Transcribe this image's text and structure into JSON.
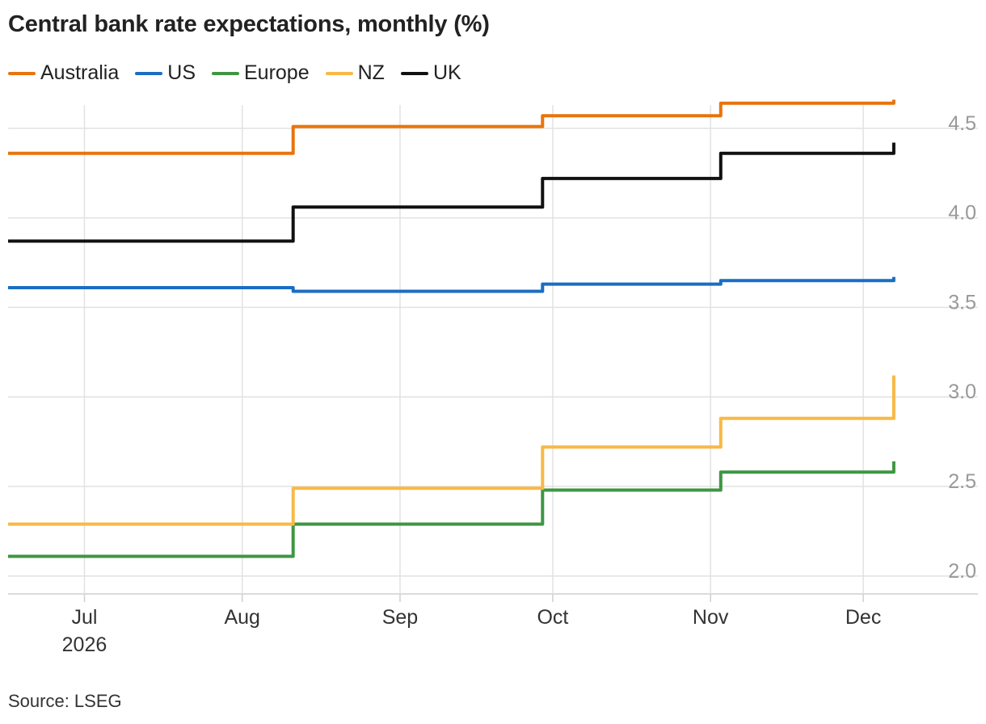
{
  "chart_data": {
    "type": "line",
    "title": "Central bank rate expectations, monthly (%)",
    "source": "Source: LSEG",
    "x_axis": {
      "range": [
        "2026-06-16",
        "2026-12-14"
      ],
      "ticks": [
        {
          "date": "2026-07-01",
          "label": "Jul",
          "sublabel": "2026"
        },
        {
          "date": "2026-08-01",
          "label": "Aug",
          "sublabel": ""
        },
        {
          "date": "2026-09-01",
          "label": "Sep",
          "sublabel": ""
        },
        {
          "date": "2026-10-01",
          "label": "Oct",
          "sublabel": ""
        },
        {
          "date": "2026-11-01",
          "label": "Nov",
          "sublabel": ""
        },
        {
          "date": "2026-12-01",
          "label": "Dec",
          "sublabel": ""
        }
      ]
    },
    "y_axis": {
      "range": [
        1.9,
        4.63
      ],
      "ticks": [
        {
          "value": 2.0,
          "label": "2.0"
        },
        {
          "value": 2.5,
          "label": "2.5"
        },
        {
          "value": 3.0,
          "label": "3.0"
        },
        {
          "value": 3.5,
          "label": "3.5"
        },
        {
          "value": 4.0,
          "label": "4.0"
        },
        {
          "value": 4.5,
          "label": "4.5"
        }
      ],
      "position": "right"
    },
    "grid": true,
    "legend_placement": "top-left",
    "step": true,
    "series": [
      {
        "name": "Australia",
        "color": "#e8740c",
        "points": [
          [
            "2026-06-16",
            4.36
          ],
          [
            "2026-08-11",
            4.36
          ],
          [
            "2026-08-11",
            4.51
          ],
          [
            "2026-09-29",
            4.51
          ],
          [
            "2026-09-29",
            4.57
          ],
          [
            "2026-11-03",
            4.57
          ],
          [
            "2026-11-03",
            4.64
          ],
          [
            "2026-12-07",
            4.64
          ],
          [
            "2026-12-07",
            4.66
          ]
        ]
      },
      {
        "name": "US",
        "color": "#1a6ec2",
        "points": [
          [
            "2026-06-16",
            3.61
          ],
          [
            "2026-08-11",
            3.61
          ],
          [
            "2026-08-11",
            3.59
          ],
          [
            "2026-09-29",
            3.59
          ],
          [
            "2026-09-29",
            3.63
          ],
          [
            "2026-11-03",
            3.63
          ],
          [
            "2026-11-03",
            3.65
          ],
          [
            "2026-12-07",
            3.65
          ],
          [
            "2026-12-07",
            3.67
          ]
        ]
      },
      {
        "name": "Europe",
        "color": "#3f9642",
        "points": [
          [
            "2026-06-16",
            2.11
          ],
          [
            "2026-08-11",
            2.11
          ],
          [
            "2026-08-11",
            2.29
          ],
          [
            "2026-09-29",
            2.29
          ],
          [
            "2026-09-29",
            2.48
          ],
          [
            "2026-11-03",
            2.48
          ],
          [
            "2026-11-03",
            2.58
          ],
          [
            "2026-12-07",
            2.58
          ],
          [
            "2026-12-07",
            2.64
          ]
        ]
      },
      {
        "name": "NZ",
        "color": "#f8b945",
        "points": [
          [
            "2026-06-16",
            2.29
          ],
          [
            "2026-08-11",
            2.29
          ],
          [
            "2026-08-11",
            2.49
          ],
          [
            "2026-09-29",
            2.49
          ],
          [
            "2026-09-29",
            2.72
          ],
          [
            "2026-11-03",
            2.72
          ],
          [
            "2026-11-03",
            2.88
          ],
          [
            "2026-12-07",
            2.88
          ],
          [
            "2026-12-07",
            3.12
          ]
        ]
      },
      {
        "name": "UK",
        "color": "#111111",
        "points": [
          [
            "2026-06-16",
            3.87
          ],
          [
            "2026-08-11",
            3.87
          ],
          [
            "2026-08-11",
            4.06
          ],
          [
            "2026-09-29",
            4.06
          ],
          [
            "2026-09-29",
            4.22
          ],
          [
            "2026-11-03",
            4.22
          ],
          [
            "2026-11-03",
            4.36
          ],
          [
            "2026-12-07",
            4.36
          ],
          [
            "2026-12-07",
            4.42
          ]
        ]
      }
    ]
  }
}
